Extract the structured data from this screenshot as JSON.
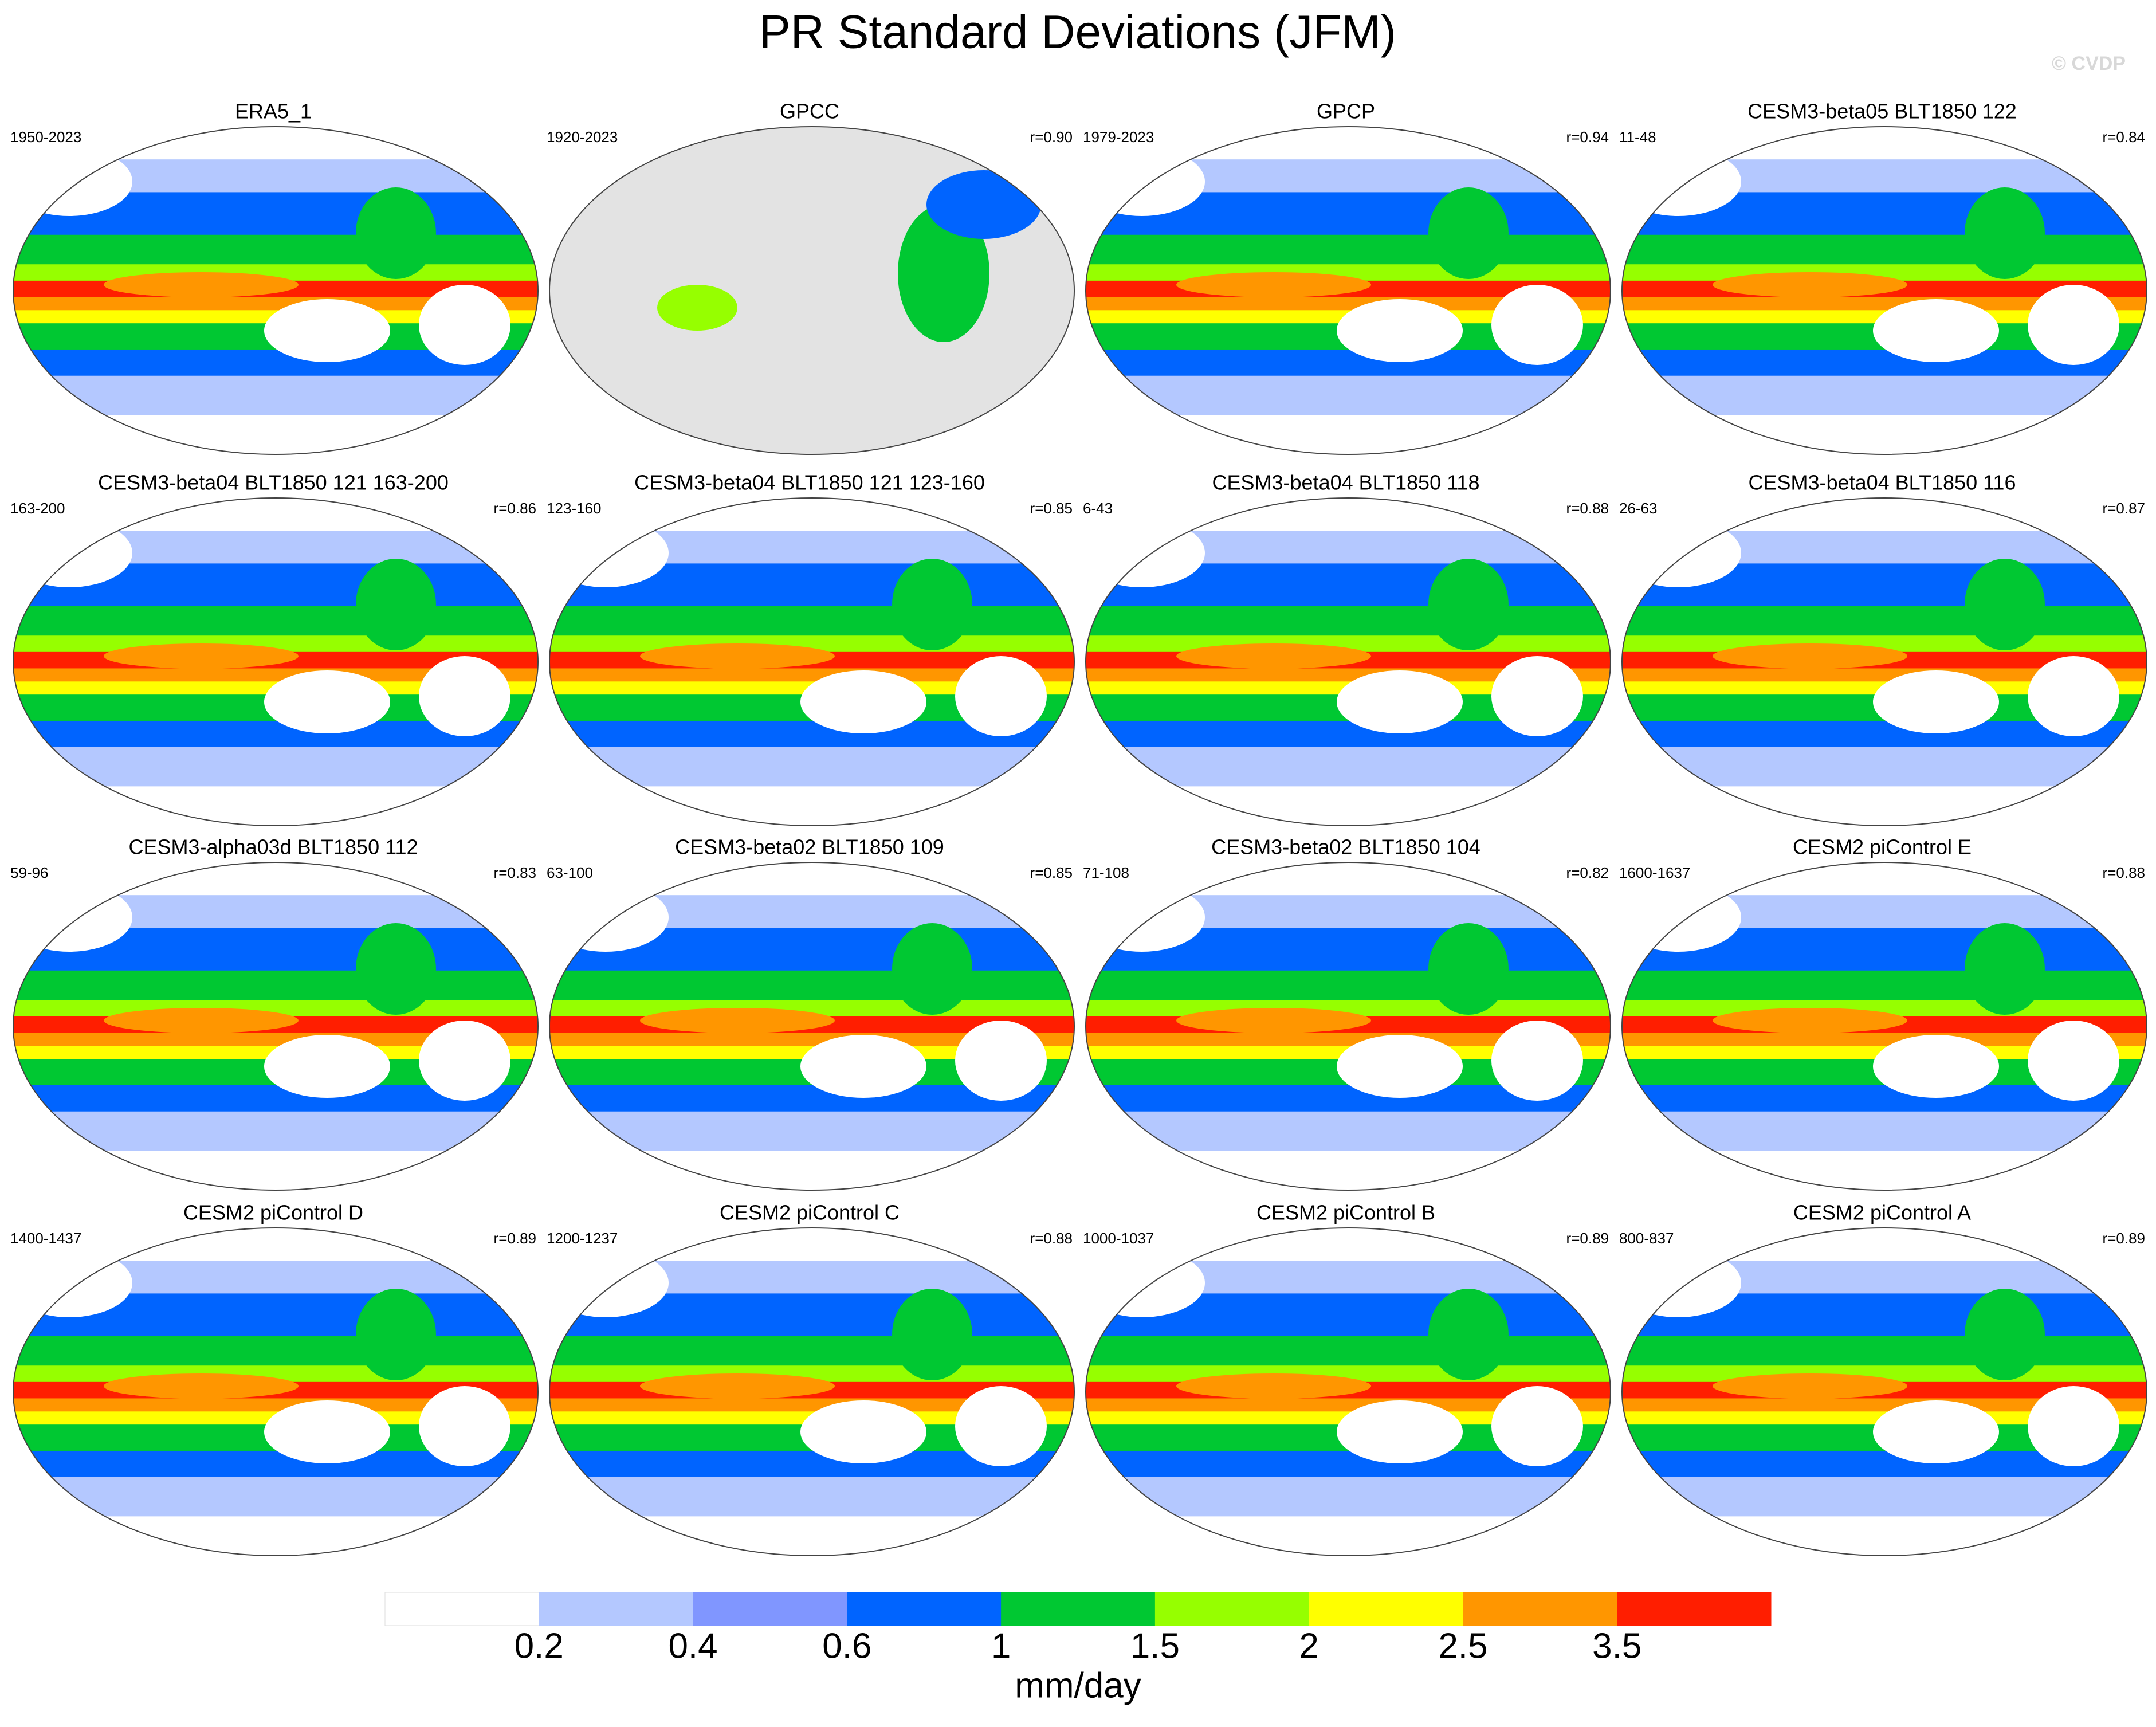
{
  "header": {
    "title": "PR Standard Deviations (JFM)",
    "watermark": "© CVDP"
  },
  "panels": [
    {
      "title": "ERA5_1",
      "period": "1950-2023"
    },
    {
      "title": "GPCC",
      "period": "1920-2023",
      "correlation": "r=0.90"
    },
    {
      "title": "GPCP",
      "period": "1979-2023",
      "correlation": "r=0.94"
    },
    {
      "title": "CESM3-beta05 BLT1850 122",
      "period": "11-48",
      "correlation": "r=0.84"
    },
    {
      "title": "CESM3-beta04 BLT1850 121 163-200",
      "period": "163-200",
      "correlation": "r=0.86"
    },
    {
      "title": "CESM3-beta04 BLT1850 121 123-160",
      "period": "123-160",
      "correlation": "r=0.85"
    },
    {
      "title": "CESM3-beta04 BLT1850 118",
      "period": "6-43",
      "correlation": "r=0.88"
    },
    {
      "title": "CESM3-beta04 BLT1850 116",
      "period": "26-63",
      "correlation": "r=0.87"
    },
    {
      "title": "CESM3-alpha03d BLT1850 112",
      "period": "59-96",
      "correlation": "r=0.83"
    },
    {
      "title": "CESM3-beta02 BLT1850 109",
      "period": "63-100",
      "correlation": "r=0.85"
    },
    {
      "title": "CESM3-beta02 BLT1850 104",
      "period": "71-108",
      "correlation": "r=0.82"
    },
    {
      "title": "CESM2 piControl E",
      "period": "1600-1637",
      "correlation": "r=0.88"
    },
    {
      "title": "CESM2 piControl D",
      "period": "1400-1437",
      "correlation": "r=0.89"
    },
    {
      "title": "CESM2 piControl C",
      "period": "1200-1237",
      "correlation": "r=0.88"
    },
    {
      "title": "CESM2 piControl B",
      "period": "1000-1037",
      "correlation": "r=0.89"
    },
    {
      "title": "CESM2 piControl A",
      "period": "800-837",
      "correlation": "r=0.89"
    }
  ],
  "colorbar": {
    "colors": [
      "#ffffff",
      "#b4c8ff",
      "#8096ff",
      "#0064ff",
      "#00c832",
      "#96ff00",
      "#ffff00",
      "#ff9600",
      "#ff1e00"
    ],
    "ticks": [
      0.2,
      0.4,
      0.6,
      1,
      1.5,
      2,
      2.5,
      3.5
    ],
    "label": "mm/day"
  }
}
